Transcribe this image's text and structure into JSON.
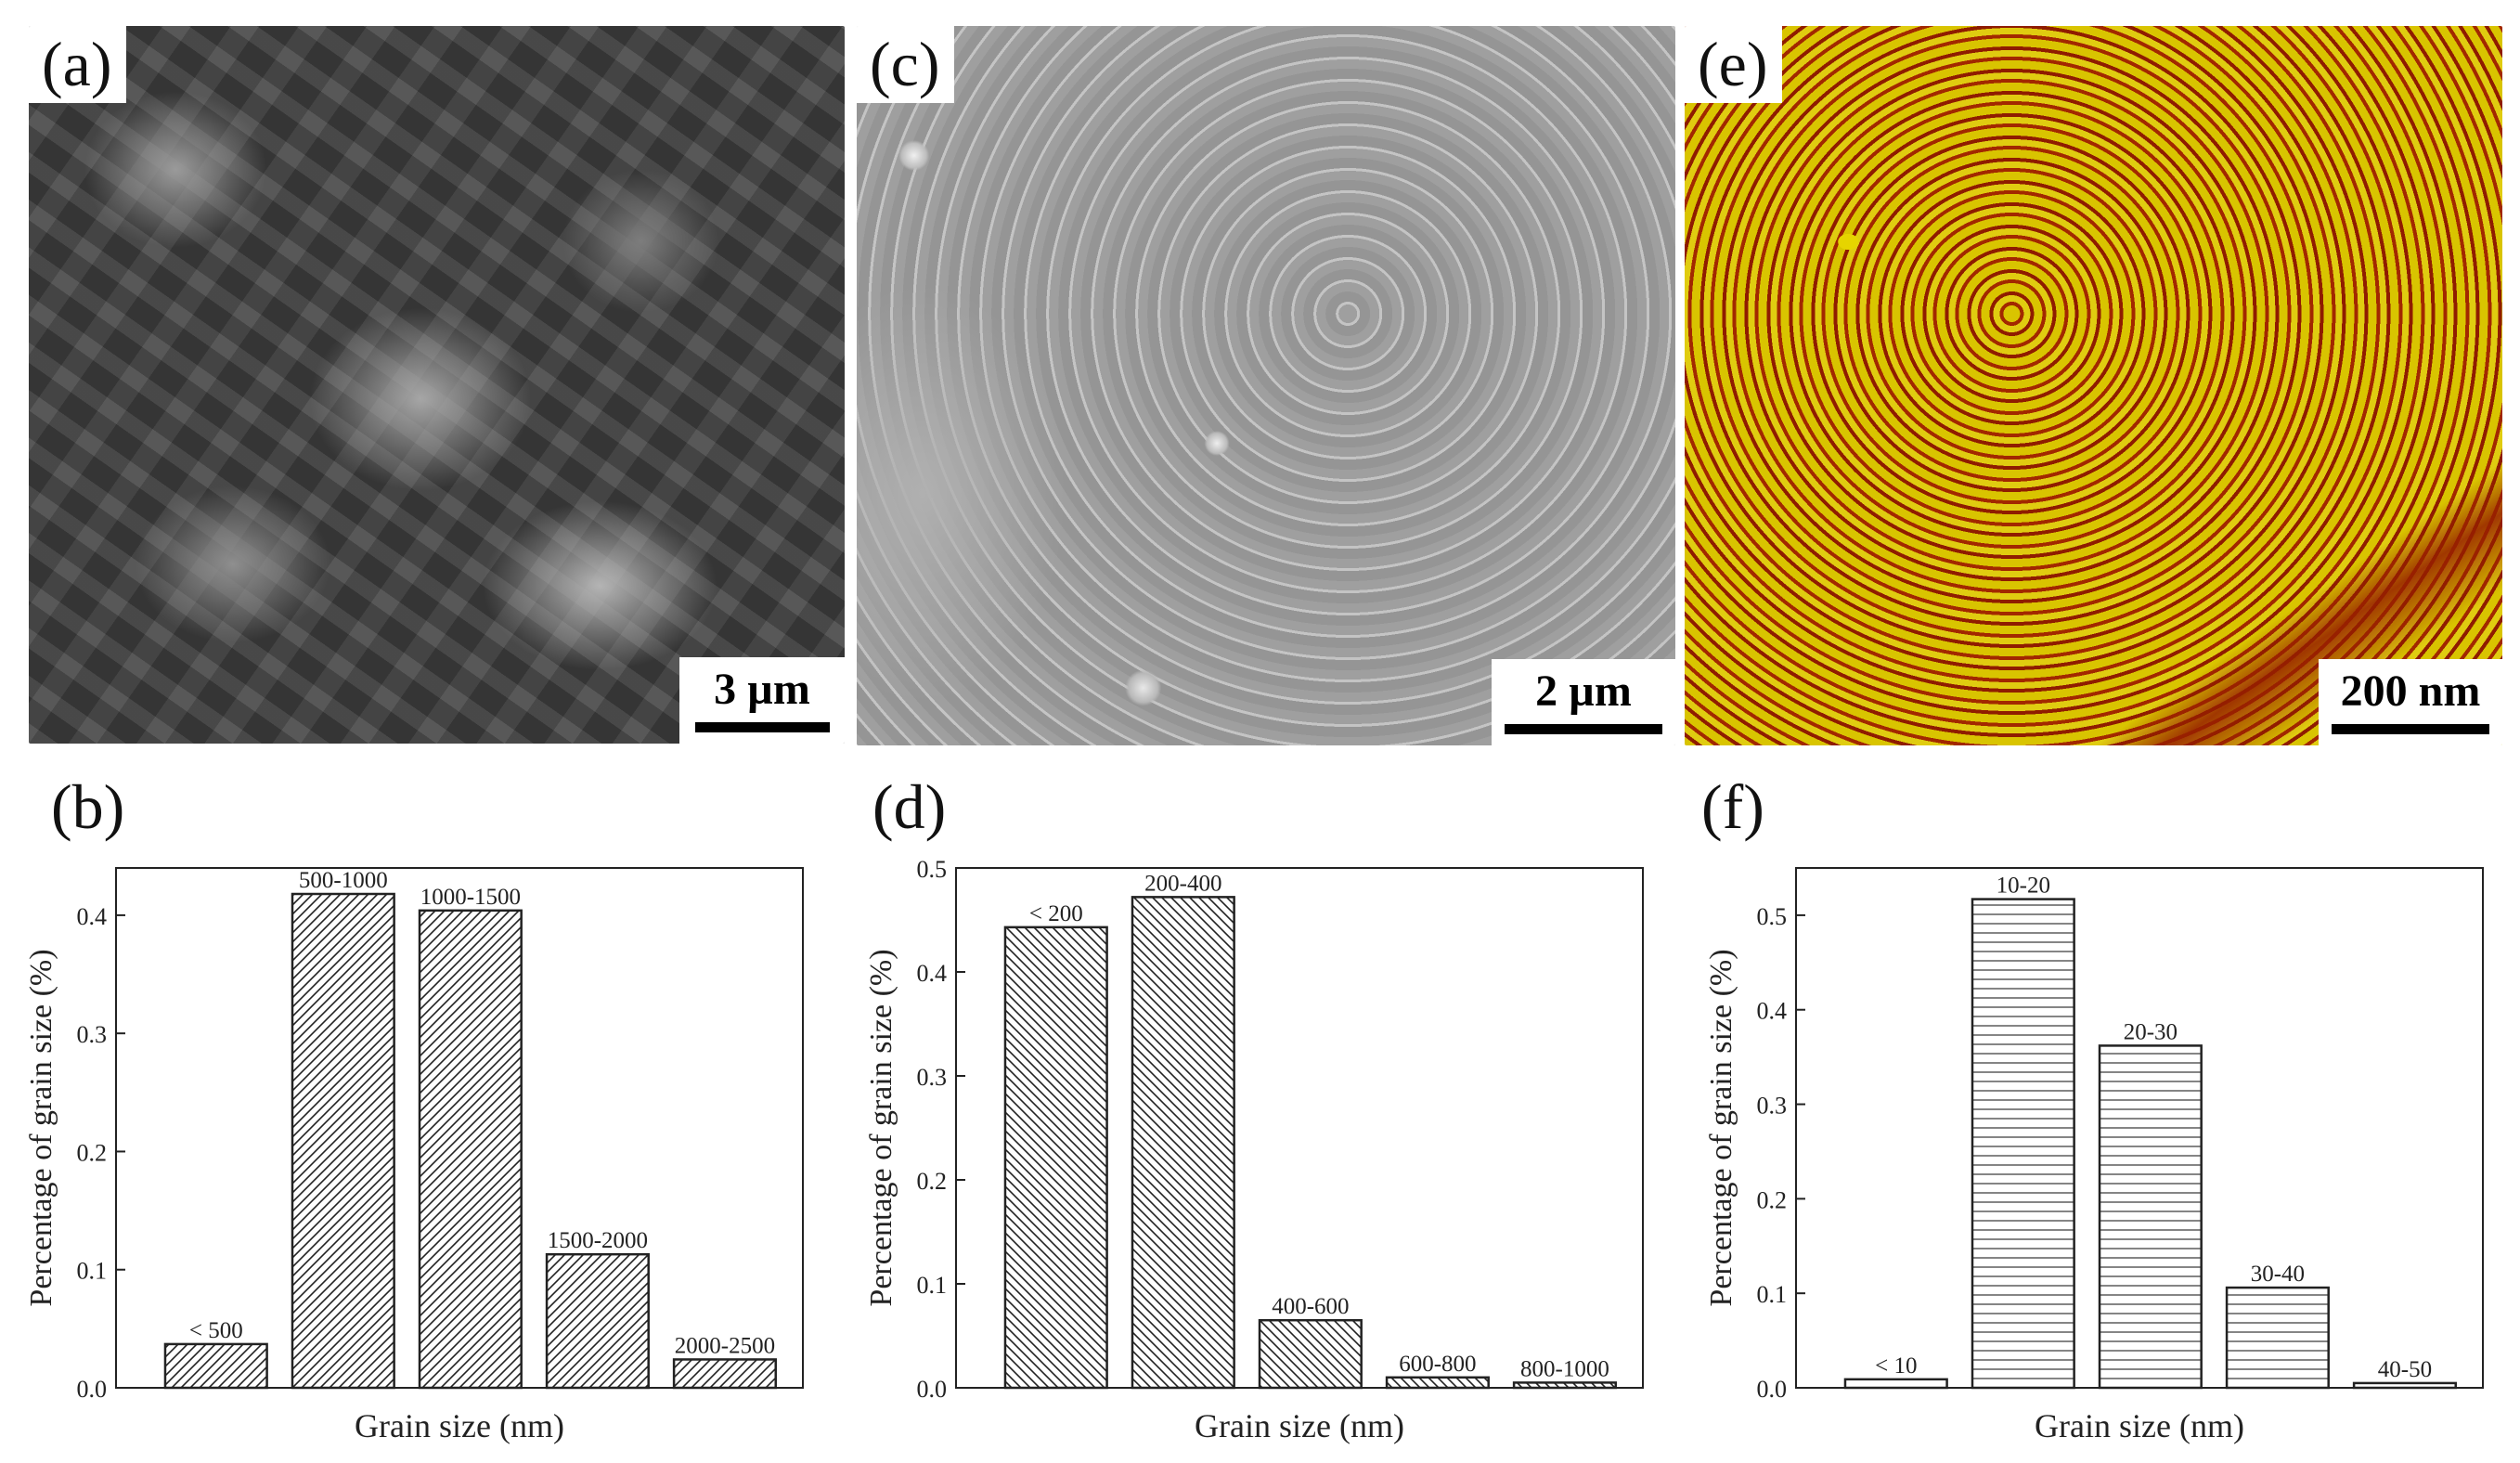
{
  "panels": {
    "a": {
      "label": "(a)",
      "scale": "3 µm"
    },
    "c": {
      "label": "(c)",
      "scale": "2 µm"
    },
    "e": {
      "label": "(e)",
      "scale": "200 nm"
    },
    "b": {
      "label": "(b)"
    },
    "d": {
      "label": "(d)"
    },
    "f": {
      "label": "(f)"
    }
  },
  "colors": {
    "afm_gold": "#e0cc10",
    "afm_red": "#a22800",
    "sem_gray": "#8a8a8a",
    "ink": "#222222"
  },
  "chart_data": [
    {
      "type": "bar",
      "panel": "b",
      "categories": [
        "< 500",
        "500-1000",
        "1000-1500",
        "1500-2000",
        "2000-2500"
      ],
      "values": [
        0.037,
        0.418,
        0.404,
        0.113,
        0.024
      ],
      "xlabel": "Grain size (nm)",
      "ylabel": "Percentage of grain size (%)",
      "ylim": [
        0,
        0.44
      ],
      "yticks": [
        0.0,
        0.1,
        0.2,
        0.3,
        0.4
      ],
      "ytick_labels": [
        "0.0",
        "0.1",
        "0.2",
        "0.3",
        "0.4"
      ],
      "pattern": "diagonal-right",
      "grid": false
    },
    {
      "type": "bar",
      "panel": "d",
      "categories": [
        "< 200",
        "200-400",
        "400-600",
        "600-800",
        "800-1000"
      ],
      "values": [
        0.443,
        0.472,
        0.065,
        0.01,
        0.005
      ],
      "xlabel": "Grain size (nm)",
      "ylabel": "Percentage of grain size (%)",
      "ylim": [
        0,
        0.5
      ],
      "yticks": [
        0.0,
        0.1,
        0.2,
        0.3,
        0.4,
        0.5
      ],
      "ytick_labels": [
        "0.0",
        "0.1",
        "0.2",
        "0.3",
        "0.4",
        "0.5"
      ],
      "pattern": "diagonal-left",
      "grid": false
    },
    {
      "type": "bar",
      "panel": "f",
      "categories": [
        "< 10",
        "10-20",
        "20-30",
        "30-40",
        "40-50"
      ],
      "values": [
        0.009,
        0.517,
        0.362,
        0.106,
        0.005
      ],
      "xlabel": "Grain size (nm)",
      "ylabel": "Percentage of grain size (%)",
      "ylim": [
        0,
        0.55
      ],
      "yticks": [
        0.0,
        0.1,
        0.2,
        0.3,
        0.4,
        0.5
      ],
      "ytick_labels": [
        "0.0",
        "0.1",
        "0.2",
        "0.3",
        "0.4",
        "0.5"
      ],
      "pattern": "horizontal",
      "grid": false
    }
  ]
}
